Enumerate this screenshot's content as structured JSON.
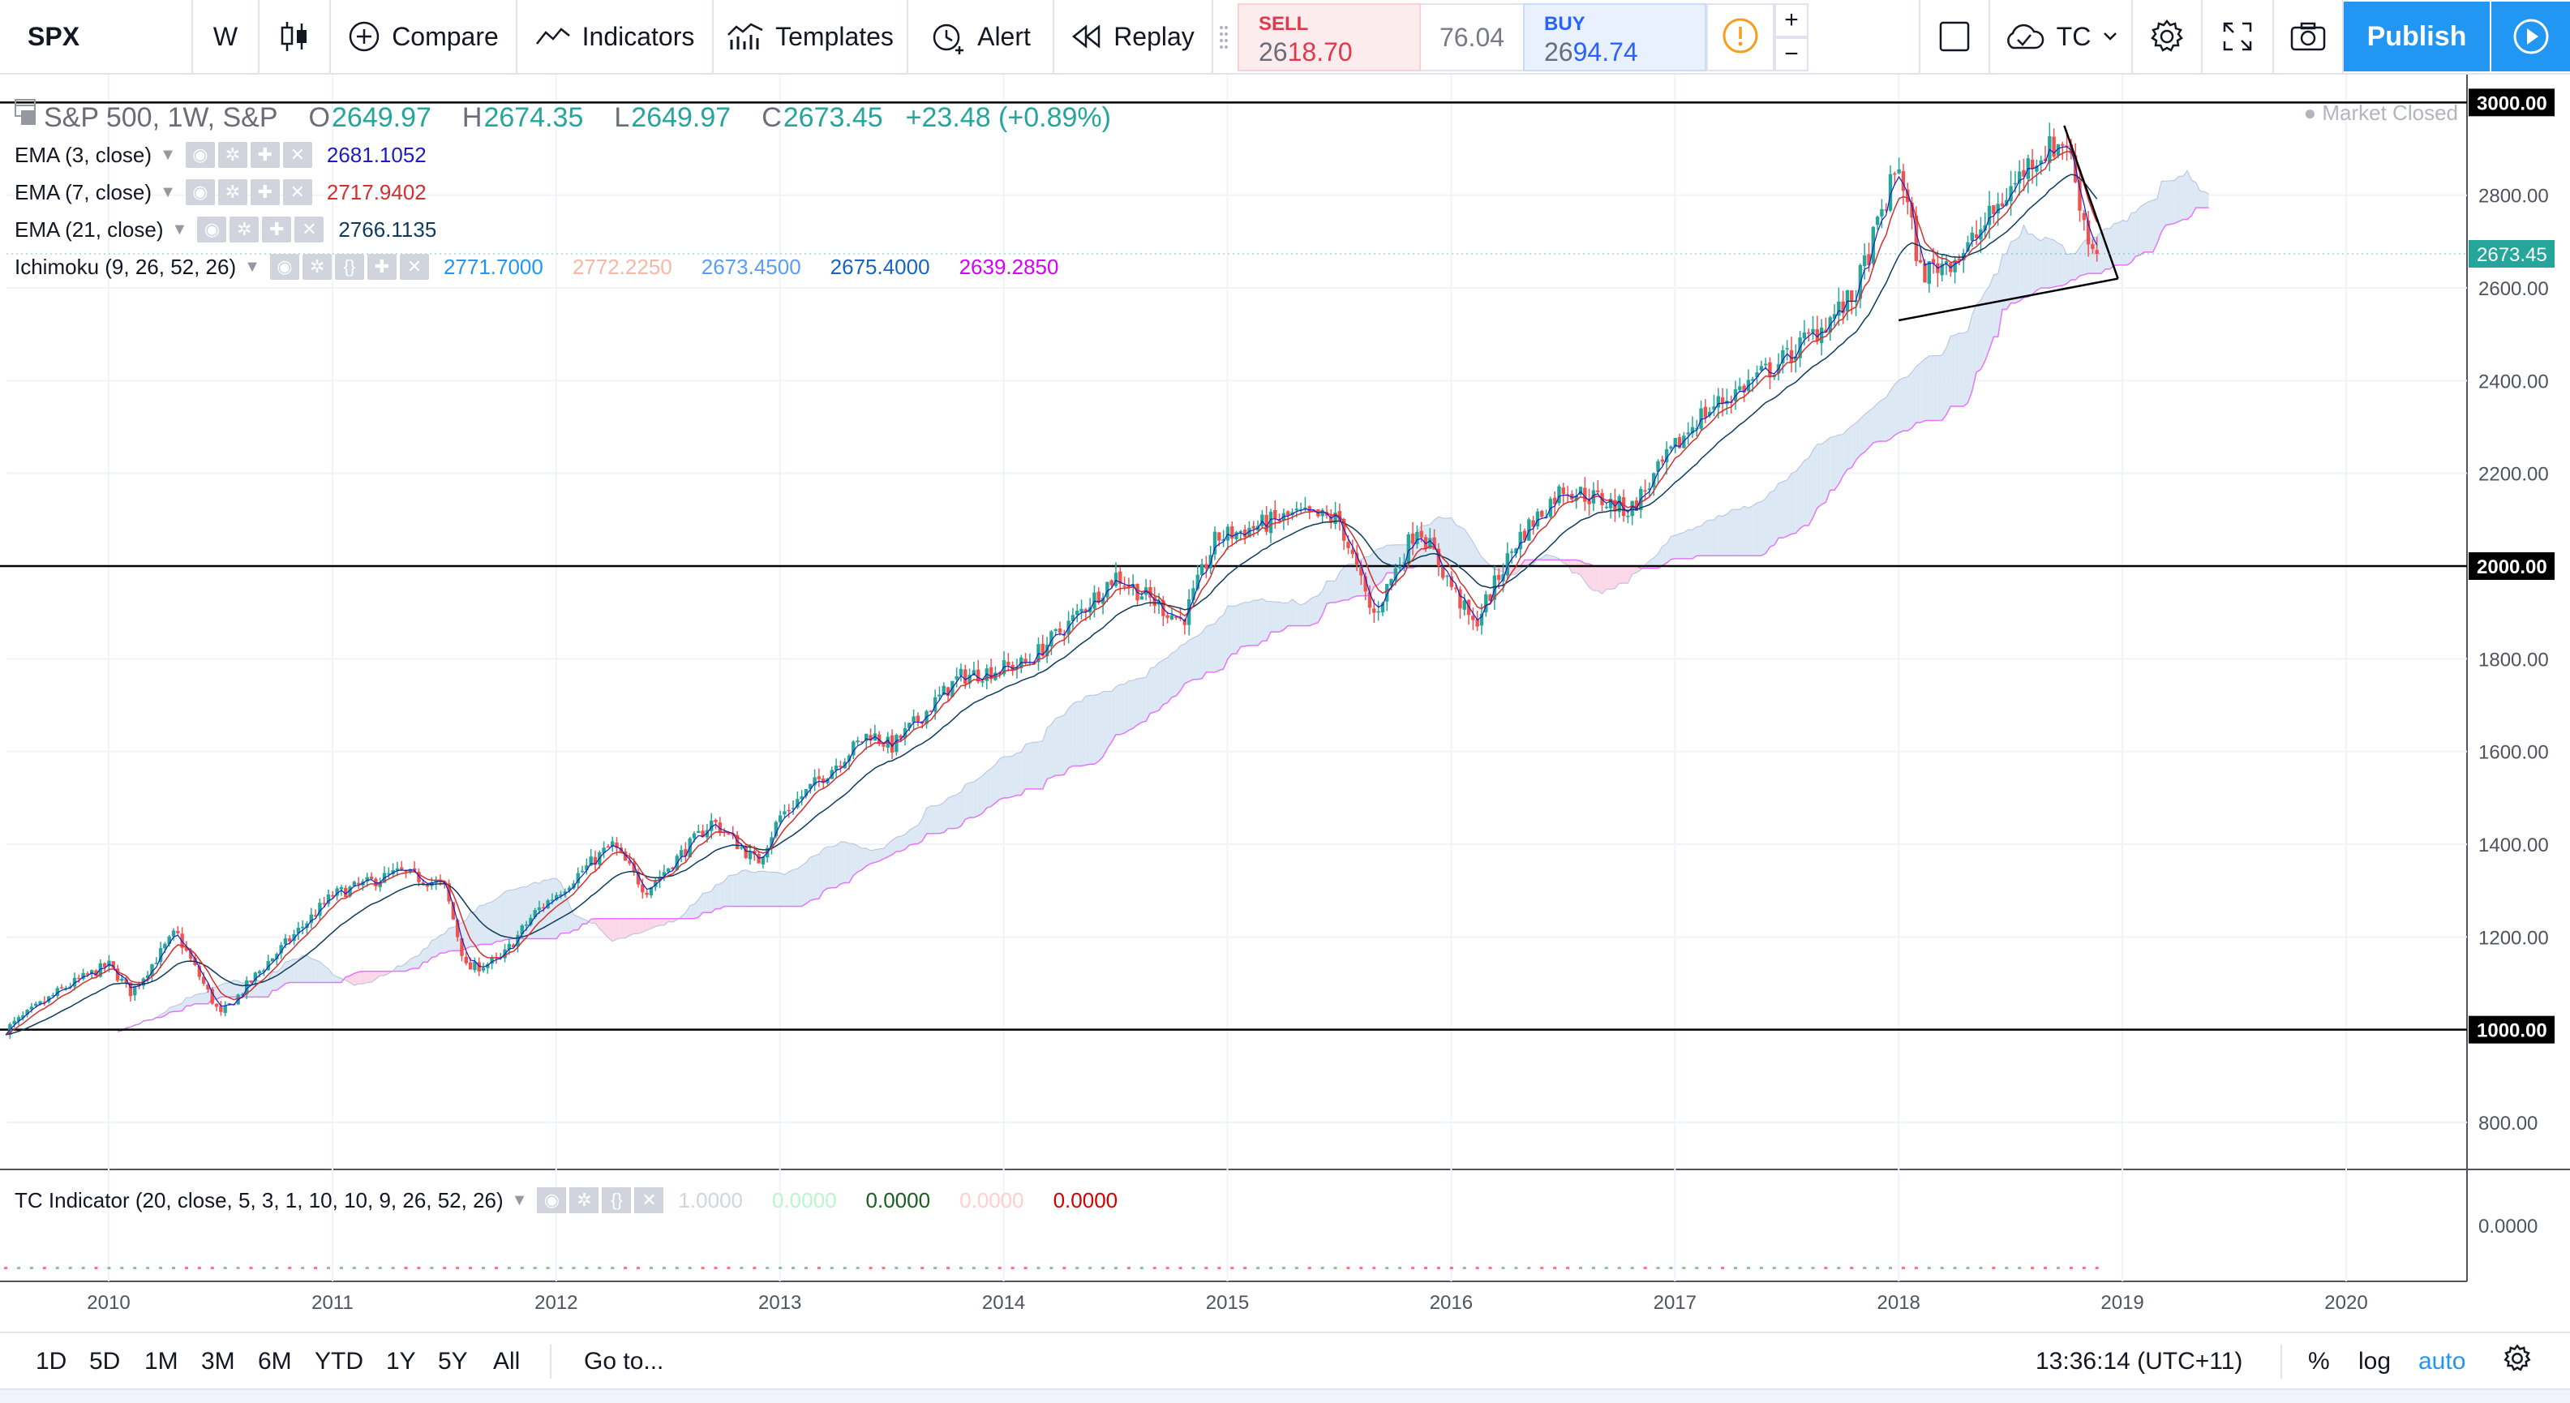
{
  "toolbar": {
    "symbol": "SPX",
    "interval": "W",
    "compare": "Compare",
    "indicators": "Indicators",
    "templates": "Templates",
    "alert": "Alert",
    "replay": "Replay",
    "sell_label": "SELL",
    "sell_price_a": "26",
    "sell_price_b": "18.70",
    "spread": "76.04",
    "buy_label": "BUY",
    "buy_price_a": "26",
    "buy_price_b": "94.74",
    "plus": "+",
    "minus": "−",
    "layout": "TC",
    "publish": "Publish"
  },
  "legend": {
    "title": "S&P 500, 1W, S&P",
    "o_label": "O",
    "o": "2649.97",
    "h_label": "H",
    "h": "2674.35",
    "l_label": "L",
    "l": "2649.97",
    "c_label": "C",
    "c": "2673.45",
    "change": "+23.48 (+0.89%)",
    "market_status": "Market Closed",
    "ema3_name": "EMA (3, close)",
    "ema3": "2681.1052",
    "ema7_name": "EMA (7, close)",
    "ema7": "2717.9402",
    "ema21_name": "EMA (21, close)",
    "ema21": "2766.1135",
    "ichi_name": "Ichimoku (9, 26, 52, 26)",
    "ichi_v1": "2771.7000",
    "ichi_v2": "2772.2250",
    "ichi_v3": "2673.4500",
    "ichi_v4": "2675.4000",
    "ichi_v5": "2639.2850",
    "tc_name": "TC Indicator (20, close, 5, 3, 1, 10, 10, 9, 26, 52, 26)",
    "tc_v1": "1.0000",
    "tc_v2": "0.0000",
    "tc_v3": "0.0000",
    "tc_v4": "0.0000",
    "tc_v5": "0.0000"
  },
  "colors": {
    "up": "#26a69a",
    "down": "#ef5350",
    "ema3": "#1c1cc7",
    "ema7": "#d32f2f",
    "ema21": "#0c3b5e",
    "cloud_bull": "#dde8f5",
    "cloud_bear": "#fbd7e8",
    "span_b": "#e040fb"
  },
  "chart_data": {
    "type": "candlestick",
    "title": "S&P 500, 1W, S&P",
    "ylim": [
      650,
      3000
    ],
    "y_ticks": [
      "800.00",
      "1000.00",
      "1200.00",
      "1400.00",
      "1600.00",
      "1800.00",
      "2000.00",
      "2200.00",
      "2400.00",
      "2600.00",
      "2800.00",
      "3000.00"
    ],
    "x_ticks": [
      "2010",
      "2011",
      "2012",
      "2013",
      "2014",
      "2015",
      "2016",
      "2017",
      "2018",
      "2019",
      "2020"
    ],
    "last_price": 2673.45,
    "last_price_label": "2673.45",
    "horizontal_lines": [
      3000,
      2000,
      1000
    ],
    "horizontal_line_labels": [
      "3000.00",
      "2000.00",
      "1000.00"
    ],
    "series_anchors": [
      [
        2009.54,
        1000
      ],
      [
        2009.8,
        1090
      ],
      [
        2010.0,
        1140
      ],
      [
        2010.1,
        1080
      ],
      [
        2010.3,
        1210
      ],
      [
        2010.5,
        1030
      ],
      [
        2010.7,
        1140
      ],
      [
        2011.0,
        1290
      ],
      [
        2011.3,
        1340
      ],
      [
        2011.5,
        1310
      ],
      [
        2011.6,
        1130
      ],
      [
        2011.75,
        1150
      ],
      [
        2011.9,
        1250
      ],
      [
        2012.25,
        1400
      ],
      [
        2012.4,
        1300
      ],
      [
        2012.7,
        1450
      ],
      [
        2012.9,
        1360
      ],
      [
        2013.0,
        1460
      ],
      [
        2013.4,
        1640
      ],
      [
        2013.5,
        1610
      ],
      [
        2013.8,
        1760
      ],
      [
        2014.1,
        1790
      ],
      [
        2014.3,
        1880
      ],
      [
        2014.5,
        1980
      ],
      [
        2014.8,
        1880
      ],
      [
        2014.95,
        2060
      ],
      [
        2015.3,
        2110
      ],
      [
        2015.5,
        2100
      ],
      [
        2015.65,
        1890
      ],
      [
        2015.85,
        2090
      ],
      [
        2016.1,
        1870
      ],
      [
        2016.3,
        2060
      ],
      [
        2016.5,
        2170
      ],
      [
        2016.8,
        2120
      ],
      [
        2017.1,
        2320
      ],
      [
        2017.5,
        2450
      ],
      [
        2017.8,
        2580
      ],
      [
        2018.0,
        2870
      ],
      [
        2018.1,
        2630
      ],
      [
        2018.3,
        2680
      ],
      [
        2018.6,
        2880
      ],
      [
        2018.75,
        2920
      ],
      [
        2018.85,
        2700
      ],
      [
        2018.9,
        2673.45
      ]
    ],
    "ema3_last": 2681.1052,
    "ema7_last": 2717.9402,
    "ema21_last": 2766.1135,
    "subpane": {
      "name": "TC Indicator",
      "y_tick": "0.0000"
    }
  },
  "bottom": {
    "ranges": [
      "1D",
      "5D",
      "1M",
      "3M",
      "6M",
      "YTD",
      "1Y",
      "5Y",
      "All"
    ],
    "goto": "Go to...",
    "time": "13:36:14 (UTC+11)",
    "percent": "%",
    "log": "log",
    "auto": "auto"
  }
}
